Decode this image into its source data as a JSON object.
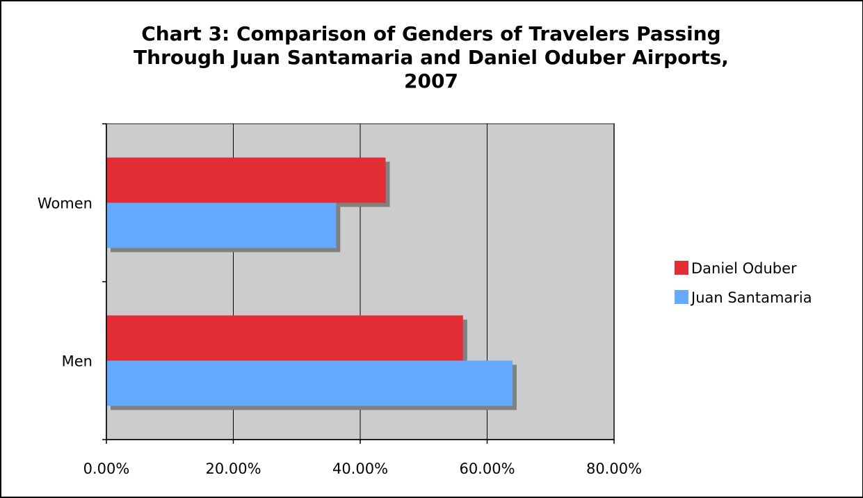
{
  "chart_data": {
    "type": "bar",
    "orientation": "horizontal",
    "title_lines": [
      "Chart 3: Comparison of Genders of Travelers Passing",
      "Through Juan Santamaria and Daniel Oduber Airports,",
      "2007"
    ],
    "categories": [
      "Men",
      "Women"
    ],
    "series": [
      {
        "name": "Juan Santamaria",
        "color": "#66aaff",
        "values": [
          0.64,
          0.362
        ]
      },
      {
        "name": "Daniel Oduber",
        "color": "#e22d34",
        "values": [
          0.562,
          0.44
        ]
      }
    ],
    "xlim": [
      0,
      0.8
    ],
    "x_ticks": [
      0,
      0.2,
      0.4,
      0.6,
      0.8
    ],
    "x_tick_labels": [
      "0.00%",
      "20.00%",
      "40.00%",
      "60.00%",
      "80.00%"
    ],
    "grid": true,
    "plot_background": "#cccccc",
    "legend": {
      "position": "right",
      "items": [
        "Daniel Oduber",
        "Juan Santamaria"
      ]
    }
  }
}
